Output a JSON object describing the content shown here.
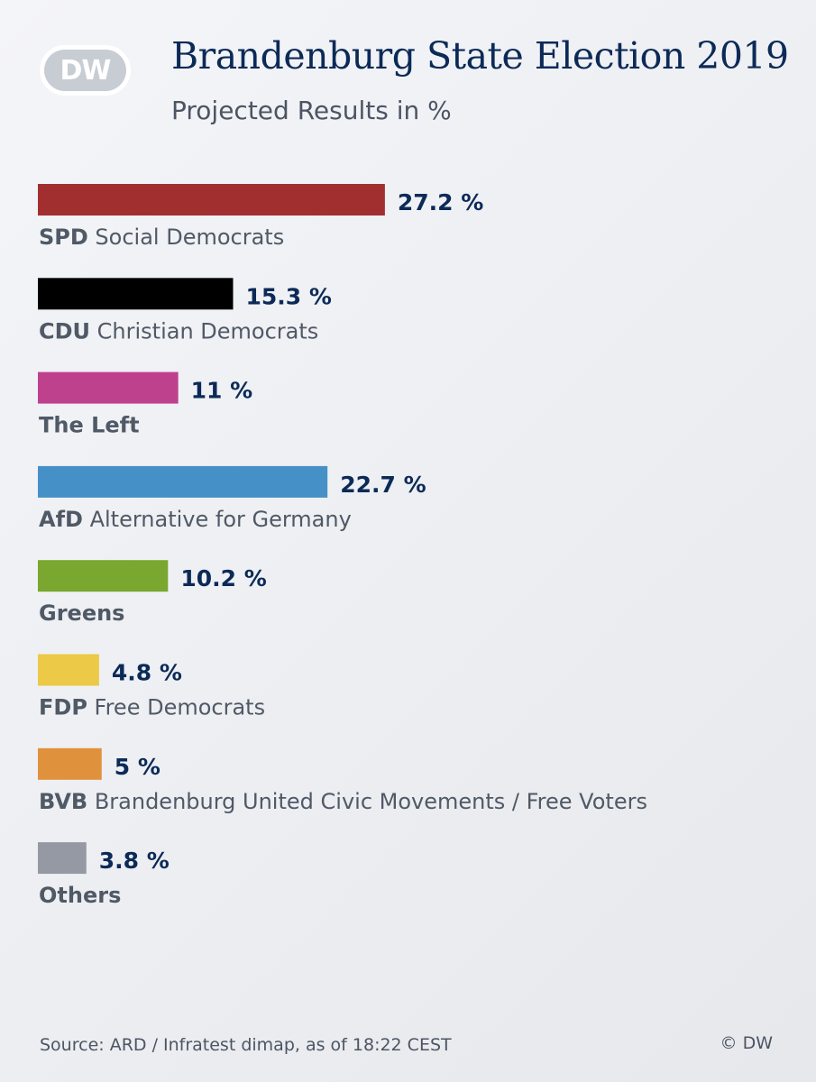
{
  "header": {
    "logo_text": "DW",
    "title": "Brandenburg State Election 2019",
    "subtitle": "Projected Results in %"
  },
  "chart_data": {
    "type": "bar",
    "orientation": "horizontal",
    "unit": "%",
    "categories": [
      {
        "abbr": "SPD",
        "name": "Social Democrats",
        "value": 27.2,
        "value_label": "27.2 %",
        "color": "#a22f2f"
      },
      {
        "abbr": "CDU",
        "name": "Christian Democrats",
        "value": 15.3,
        "value_label": "15.3 %",
        "color": "#000000"
      },
      {
        "abbr": "",
        "name": "The Left",
        "value": 11,
        "value_label": "11 %",
        "color": "#be418e"
      },
      {
        "abbr": "AfD",
        "name": "Alternative for Germany",
        "value": 22.7,
        "value_label": "22.7 %",
        "color": "#4690c8"
      },
      {
        "abbr": "",
        "name": "Greens",
        "value": 10.2,
        "value_label": "10.2 %",
        "color": "#7aa72f"
      },
      {
        "abbr": "FDP",
        "name": "Free Democrats",
        "value": 4.8,
        "value_label": "4.8 %",
        "color": "#ecc947"
      },
      {
        "abbr": "BVB",
        "name": "Brandenburg United Civic Movements / Free Voters",
        "value": 5,
        "value_label": "5 %",
        "color": "#e0913c"
      },
      {
        "abbr": "",
        "name": "Others",
        "value": 3.8,
        "value_label": "3.8 %",
        "color": "#9499a3"
      }
    ]
  },
  "footer": {
    "source": "Source: ARD / Infratest dimap, as of 18:22 CEST",
    "copyright": "© DW"
  }
}
